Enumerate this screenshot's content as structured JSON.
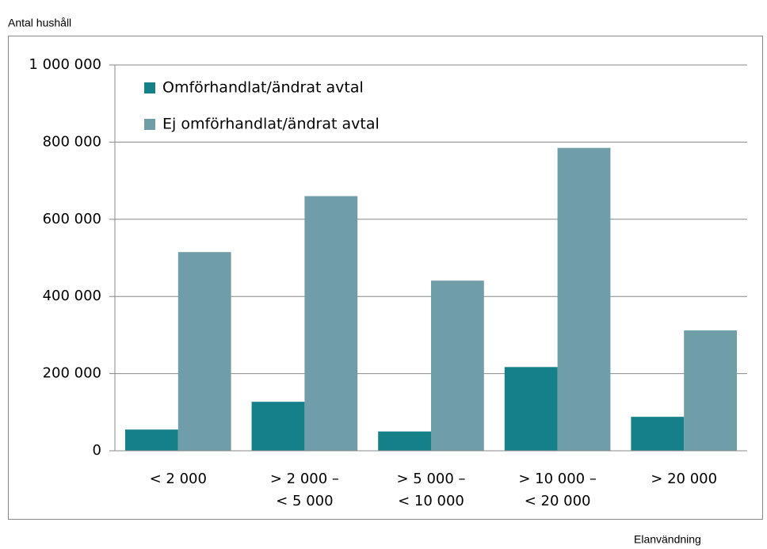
{
  "chart_data": {
    "type": "bar",
    "y_label": "Antal hushåll",
    "x_label": "Elanvändning",
    "categories": [
      "< 2 000",
      "> 2 000 –\n< 5 000",
      "> 5 000 –\n< 10 000",
      "> 10 000 –\n< 20 000",
      "> 20 000"
    ],
    "series": [
      {
        "name": "Omförhandlat/ändrat avtal",
        "color": "#168088",
        "values": [
          55000,
          127000,
          50000,
          217000,
          88000
        ]
      },
      {
        "name": "Ej omförhandlat/ändrat avtal",
        "color": "#6f9ea9",
        "values": [
          515000,
          660000,
          441000,
          785000,
          312000
        ]
      }
    ],
    "ylim": [
      0,
      1000000
    ],
    "yticks": [
      0,
      {
        "value": 200000,
        "label": "200 000"
      },
      {
        "value": 400000,
        "label": "400 000"
      },
      {
        "value": 600000,
        "label": "600 000"
      },
      {
        "value": 800000,
        "label": "800 000"
      },
      {
        "value": 1000000,
        "label": "1 000 000"
      }
    ],
    "grid": true,
    "legend": "top-left"
  }
}
